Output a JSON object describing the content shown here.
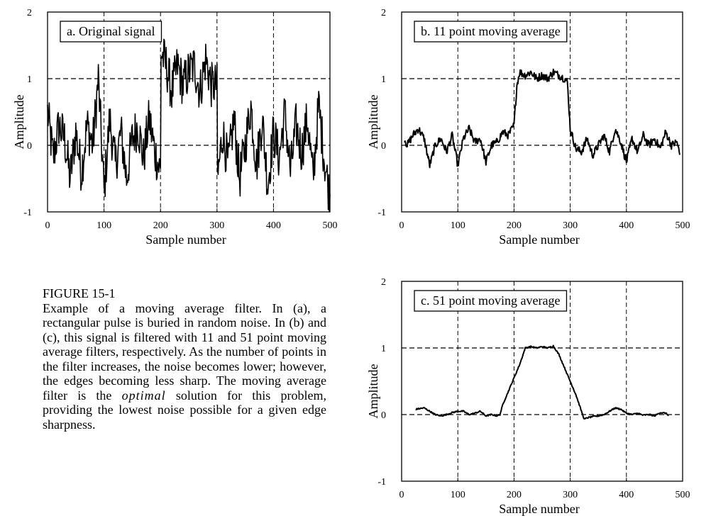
{
  "caption": {
    "label": "FIGURE 15-1",
    "body_before": "Example of a moving average filter. In (a), a rectangular pulse is buried in random noise. In (b) and (c), this signal is filtered with 11 and 51 point moving average filters, respectively.  As the number of points in the filter increases, the noise becomes lower; however,  the edges becoming less sharp. The moving average filter is the ",
    "body_emphasis": "optimal",
    "body_after": " solution for this problem, providing the lowest noise possible for a given edge sharpness."
  },
  "chart_data": [
    {
      "id": "a",
      "type": "line",
      "title": "a.  Original signal",
      "xlabel": "Sample number",
      "ylabel": "Amplitude",
      "xlim": [
        0,
        500
      ],
      "ylim": [
        -1,
        2
      ],
      "xticks": [
        0,
        100,
        200,
        300,
        400,
        500
      ],
      "yticks": [
        -1,
        0,
        1,
        2
      ],
      "dashed_x": [
        100,
        200,
        300,
        400
      ],
      "dashed_y": [
        0,
        1
      ],
      "noise_amplitude": 0.35,
      "series": [
        {
          "x": [
            0,
            10,
            20,
            30,
            40,
            50,
            60,
            70,
            80,
            90,
            100,
            110,
            120,
            130,
            140,
            150,
            160,
            170,
            180,
            190,
            200,
            201,
            210,
            220,
            230,
            240,
            250,
            260,
            270,
            280,
            290,
            300,
            301,
            310,
            320,
            330,
            340,
            350,
            360,
            370,
            380,
            390,
            400,
            410,
            420,
            430,
            440,
            450,
            460,
            470,
            480,
            490,
            500
          ],
          "values": [
            0.5,
            -0.2,
            0.3,
            0.1,
            -0.5,
            0.2,
            -0.4,
            0.3,
            0.0,
            1.0,
            -0.7,
            0.4,
            -0.3,
            0.2,
            -0.5,
            0.1,
            0.3,
            -0.2,
            0.4,
            -0.1,
            -0.4,
            1.4,
            1.2,
            0.8,
            1.2,
            0.9,
            1.1,
            1.2,
            0.8,
            1.3,
            0.9,
            0.9,
            -0.5,
            0.2,
            -0.3,
            0.4,
            -0.5,
            0.0,
            0.6,
            -0.3,
            0.4,
            -0.6,
            0.2,
            -0.2,
            0.5,
            -0.4,
            0.3,
            -0.1,
            0.4,
            -0.5,
            0.6,
            -0.2,
            -0.8
          ]
        }
      ]
    },
    {
      "id": "b",
      "type": "line",
      "title": "b.  11 point moving average",
      "xlabel": "Sample number",
      "ylabel": "Amplitude",
      "xlim": [
        0,
        500
      ],
      "ylim": [
        -1,
        2
      ],
      "xticks": [
        0,
        100,
        200,
        300,
        400,
        500
      ],
      "yticks": [
        -1,
        0,
        1,
        2
      ],
      "dashed_x": [
        100,
        200,
        300,
        400
      ],
      "dashed_y": [
        0,
        1
      ],
      "noise_amplitude": 0.06,
      "series": [
        {
          "x": [
            5,
            10,
            20,
            30,
            40,
            50,
            60,
            70,
            80,
            90,
            100,
            110,
            120,
            130,
            140,
            150,
            160,
            170,
            180,
            190,
            200,
            205,
            210,
            220,
            230,
            240,
            250,
            260,
            270,
            280,
            290,
            295,
            300,
            310,
            320,
            330,
            340,
            350,
            360,
            370,
            380,
            390,
            400,
            410,
            420,
            430,
            440,
            450,
            460,
            470,
            480,
            490,
            495
          ],
          "values": [
            0.1,
            0.0,
            0.15,
            0.25,
            0.1,
            -0.3,
            0.0,
            0.1,
            -0.1,
            0.15,
            -0.3,
            0.1,
            0.25,
            0.05,
            0.1,
            -0.25,
            0.0,
            0.05,
            0.2,
            0.15,
            0.3,
            0.9,
            1.1,
            1.05,
            1.1,
            1.0,
            1.05,
            1.0,
            1.1,
            1.05,
            1.0,
            0.95,
            0.25,
            -0.05,
            -0.1,
            0.1,
            -0.15,
            0.0,
            0.15,
            -0.1,
            0.25,
            0.05,
            -0.25,
            0.1,
            -0.1,
            0.15,
            0.0,
            0.1,
            -0.05,
            0.2,
            0.0,
            0.05,
            -0.15
          ]
        }
      ]
    },
    {
      "id": "c",
      "type": "line",
      "title": "c.  51 point moving average",
      "xlabel": "Sample number",
      "ylabel": "Amplitude",
      "xlim": [
        0,
        500
      ],
      "ylim": [
        -1,
        2
      ],
      "xticks": [
        0,
        100,
        200,
        300,
        400,
        500
      ],
      "yticks": [
        -1,
        0,
        1,
        2
      ],
      "dashed_x": [
        100,
        200,
        300,
        400
      ],
      "dashed_y": [
        0,
        1
      ],
      "noise_amplitude": 0.01,
      "series": [
        {
          "x": [
            25,
            40,
            50,
            60,
            70,
            80,
            90,
            100,
            110,
            120,
            130,
            140,
            150,
            160,
            170,
            175,
            180,
            190,
            200,
            210,
            220,
            230,
            240,
            250,
            260,
            270,
            280,
            290,
            300,
            310,
            320,
            325,
            330,
            340,
            350,
            360,
            370,
            380,
            390,
            400,
            410,
            420,
            430,
            440,
            450,
            460,
            470,
            475
          ],
          "values": [
            0.08,
            0.1,
            0.05,
            0.0,
            -0.02,
            0.0,
            0.03,
            0.05,
            0.05,
            0.0,
            0.02,
            0.05,
            -0.02,
            0.0,
            -0.02,
            0.0,
            0.15,
            0.35,
            0.55,
            0.75,
            1.0,
            1.02,
            1.0,
            1.02,
            1.0,
            1.03,
            0.9,
            0.7,
            0.5,
            0.3,
            0.05,
            -0.07,
            -0.05,
            -0.03,
            -0.02,
            0.0,
            0.05,
            0.1,
            0.08,
            0.02,
            0.0,
            0.02,
            -0.01,
            0.0,
            -0.02,
            0.03,
            0.02,
            -0.01
          ]
        }
      ]
    }
  ]
}
